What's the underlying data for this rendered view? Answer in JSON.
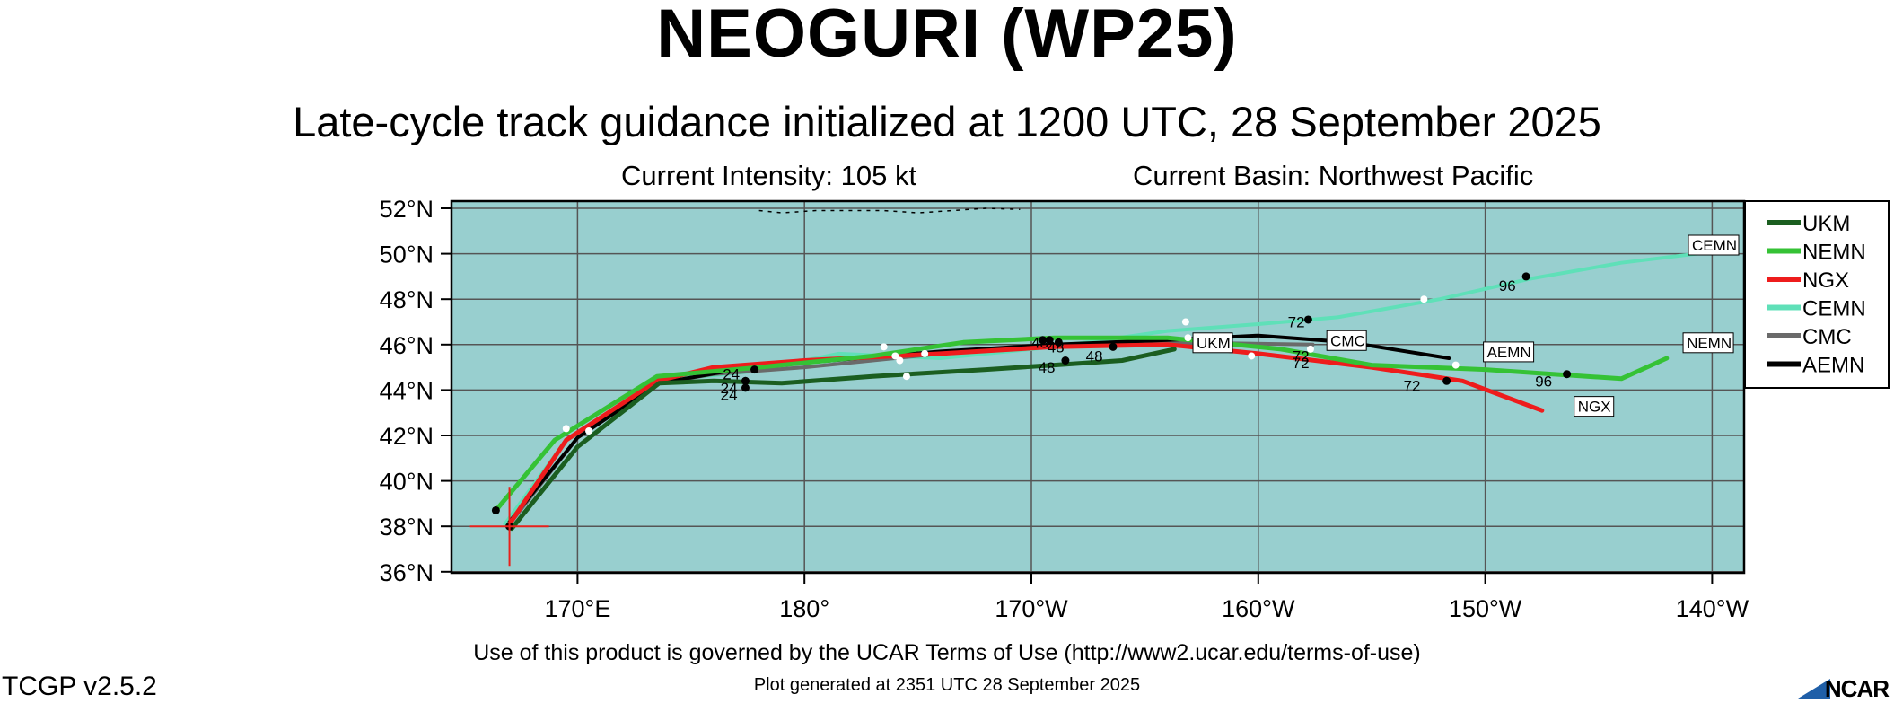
{
  "header": {
    "title": "NEOGURI (WP25)",
    "subtitle": "Late-cycle track guidance initialized at 1200 UTC, 28 September 2025",
    "intensity": "Current Intensity: 105 kt",
    "basin": "Current Basin: Northwest Pacific"
  },
  "footer": {
    "terms": "Use of this product is governed by the UCAR Terms of Use (http://www2.ucar.edu/terms-of-use)",
    "generated": "Plot generated at 2351 UTC   28 September 2025",
    "version": "TCGP v2.5.2",
    "logo_text": "NCAR"
  },
  "colors": {
    "ocean": "#98cfcf",
    "grid": "#555555",
    "storm_marker": "#e8201b"
  },
  "chart_data": {
    "type": "line",
    "map": "track guidance",
    "xlim": [
      165,
      219
    ],
    "ylim": [
      36,
      52
    ],
    "x_ticks": [
      {
        "v": 170,
        "label": "170°E"
      },
      {
        "v": 180,
        "label": "180°"
      },
      {
        "v": 190,
        "label": "170°W"
      },
      {
        "v": 200,
        "label": "160°W"
      },
      {
        "v": 210,
        "label": "150°W"
      },
      {
        "v": 220,
        "label": "140°W"
      }
    ],
    "y_ticks": [
      {
        "v": 52,
        "label": "52°N"
      },
      {
        "v": 50,
        "label": "50°N"
      },
      {
        "v": 48,
        "label": "48°N"
      },
      {
        "v": 46,
        "label": "46°N"
      },
      {
        "v": 44,
        "label": "44°N"
      },
      {
        "v": 42,
        "label": "42°N"
      },
      {
        "v": 40,
        "label": "40°N"
      },
      {
        "v": 38,
        "label": "38°N"
      },
      {
        "v": 36,
        "label": "36°N"
      }
    ],
    "storm_position": {
      "lon": 167.0,
      "lat": 38.0
    },
    "series": [
      {
        "name": "CEMN",
        "color": "#5fe0b8",
        "width": 4,
        "points": [
          [
            166.8,
            38.1
          ],
          [
            169.5,
            41.8
          ],
          [
            173.5,
            44.4
          ],
          [
            177.5,
            44.8
          ],
          [
            181.5,
            45.6
          ],
          [
            186,
            45.4
          ],
          [
            191,
            45.9
          ],
          [
            196,
            46.6
          ],
          [
            200,
            46.9
          ],
          [
            203.5,
            47.2
          ],
          [
            208,
            48.0
          ],
          [
            212,
            48.9
          ],
          [
            216,
            49.6
          ],
          [
            221,
            50.2
          ]
        ],
        "end_label": "CEMN",
        "end_label_at": [
          219.3,
          50.3
        ]
      },
      {
        "name": "CMC",
        "color": "#6a6a6a",
        "width": 4,
        "points": [
          [
            167,
            38.1
          ],
          [
            170,
            41.9
          ],
          [
            173.6,
            44.3
          ],
          [
            176,
            44.7
          ],
          [
            180,
            45.0
          ],
          [
            186,
            45.6
          ],
          [
            191,
            45.9
          ],
          [
            196,
            46.1
          ],
          [
            202.4,
            46.0
          ]
        ],
        "end_label": "CMC",
        "end_label_at": [
          203.1,
          46.1
        ]
      },
      {
        "name": "AEMN",
        "color": "#000000",
        "width": 4,
        "points": [
          [
            167,
            38.2
          ],
          [
            170,
            41.9
          ],
          [
            173.6,
            44.3
          ],
          [
            177,
            44.9
          ],
          [
            180,
            45.2
          ],
          [
            186,
            45.7
          ],
          [
            191,
            46.0
          ],
          [
            196,
            46.2
          ],
          [
            200,
            46.4
          ],
          [
            204,
            46.1
          ],
          [
            208.4,
            45.4
          ]
        ],
        "end_label": "AEMN",
        "end_label_at": [
          210,
          45.6
        ]
      },
      {
        "name": "NGX",
        "color": "#ee1c1c",
        "width": 5,
        "points": [
          [
            167,
            38.1
          ],
          [
            169.5,
            41.8
          ],
          [
            173.5,
            44.4
          ],
          [
            176,
            45.0
          ],
          [
            180,
            45.3
          ],
          [
            186,
            45.6
          ],
          [
            191,
            45.9
          ],
          [
            196,
            46.0
          ],
          [
            200,
            45.6
          ],
          [
            205,
            45.0
          ],
          [
            209,
            44.4
          ],
          [
            212.5,
            43.1
          ]
        ],
        "end_label": "NGX",
        "end_label_at": [
          214,
          43.2
        ]
      },
      {
        "name": "NEMN",
        "color": "#35c235",
        "width": 5,
        "points": [
          [
            166.4,
            38.7
          ],
          [
            169,
            41.8
          ],
          [
            173.5,
            44.6
          ],
          [
            178,
            45.0
          ],
          [
            183,
            45.5
          ],
          [
            187,
            46.1
          ],
          [
            191,
            46.3
          ],
          [
            196,
            46.3
          ],
          [
            201,
            45.8
          ],
          [
            205,
            45.1
          ],
          [
            210,
            44.9
          ],
          [
            213,
            44.7
          ],
          [
            216,
            44.5
          ],
          [
            218,
            45.4
          ]
        ],
        "end_label": "NEMN",
        "end_label_at": [
          218.8,
          46.0
        ]
      },
      {
        "name": "UKM",
        "color": "#1b5e20",
        "width": 5,
        "points": [
          [
            167.1,
            37.9
          ],
          [
            170,
            41.5
          ],
          [
            173.6,
            44.3
          ],
          [
            176,
            44.4
          ],
          [
            179,
            44.3
          ],
          [
            183,
            44.6
          ],
          [
            188,
            44.9
          ],
          [
            191,
            45.1
          ],
          [
            194,
            45.3
          ],
          [
            196.3,
            45.8
          ]
        ],
        "end_label": "UKM",
        "end_label_at": [
          197.2,
          46.0
        ]
      }
    ],
    "black_dots": [
      [
        166.4,
        38.7
      ],
      [
        167,
        38.0
      ],
      [
        177.4,
        44.4
      ],
      [
        177.4,
        44.1
      ],
      [
        177.8,
        44.9
      ],
      [
        190.5,
        46.2
      ],
      [
        190.8,
        46.2
      ],
      [
        191.2,
        46.1
      ],
      [
        191.5,
        45.3
      ],
      [
        193.6,
        45.9
      ],
      [
        202.2,
        47.1
      ],
      [
        208.3,
        44.4
      ],
      [
        211.8,
        49.0
      ],
      [
        213.6,
        44.7
      ]
    ],
    "white_dots": [
      [
        169.5,
        42.3
      ],
      [
        170.5,
        42.2
      ],
      [
        183.5,
        45.9
      ],
      [
        184,
        45.5
      ],
      [
        184.2,
        45.3
      ],
      [
        184.5,
        44.6
      ],
      [
        185.3,
        45.6
      ],
      [
        196.8,
        47.0
      ],
      [
        196.9,
        46.3
      ],
      [
        197.4,
        46.3
      ],
      [
        199.7,
        45.5
      ],
      [
        202.3,
        45.8
      ],
      [
        207.3,
        48.0
      ],
      [
        208.7,
        45.1
      ]
    ],
    "hour_labels": [
      {
        "text": "72",
        "at": [
          201.3,
          47.0
        ]
      },
      {
        "text": "96",
        "at": [
          210.6,
          48.6
        ]
      },
      {
        "text": "48",
        "at": [
          190.0,
          46.1
        ]
      },
      {
        "text": "48",
        "at": [
          190.7,
          45.9
        ]
      },
      {
        "text": "48",
        "at": [
          192.4,
          45.5
        ]
      },
      {
        "text": "48",
        "at": [
          190.3,
          45.0
        ]
      },
      {
        "text": "72",
        "at": [
          201.5,
          45.5
        ]
      },
      {
        "text": "72",
        "at": [
          201.5,
          45.2
        ]
      },
      {
        "text": "72",
        "at": [
          206.4,
          44.2
        ]
      },
      {
        "text": "96",
        "at": [
          212.2,
          44.4
        ]
      },
      {
        "text": "24",
        "at": [
          176.4,
          44.7
        ]
      },
      {
        "text": "24",
        "at": [
          176.3,
          44.1
        ]
      },
      {
        "text": "24",
        "at": [
          176.3,
          43.8
        ]
      }
    ],
    "legend": {
      "position": "right",
      "entries": [
        {
          "name": "UKM",
          "color": "#1b5e20"
        },
        {
          "name": "NEMN",
          "color": "#35c235"
        },
        {
          "name": "NGX",
          "color": "#ee1c1c"
        },
        {
          "name": "CEMN",
          "color": "#5fe0b8"
        },
        {
          "name": "CMC",
          "color": "#6a6a6a"
        },
        {
          "name": "AEMN",
          "color": "#000000"
        }
      ]
    }
  }
}
